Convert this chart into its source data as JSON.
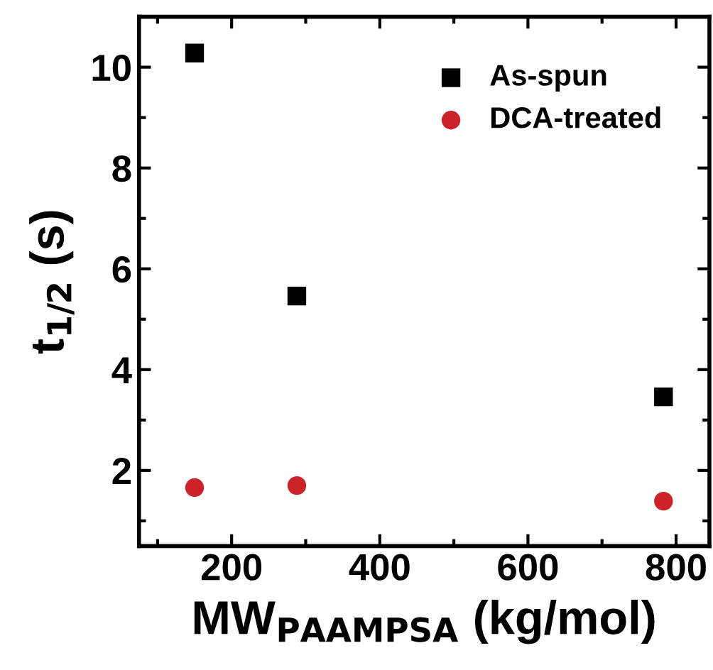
{
  "chart_data": {
    "type": "scatter",
    "xlabel": "MW$_{PAAMPSA}$ (kg/mol)",
    "ylabel": "t$_{1/2}$ (s)",
    "x": [
      150,
      288,
      783
    ],
    "series": [
      {
        "name": "As-spun",
        "color": "#000000",
        "marker": "square",
        "values": [
          10.28,
          5.46,
          3.46
        ]
      },
      {
        "name": "DCA-treated",
        "color": "#cc2229",
        "marker": "circle",
        "values": [
          1.66,
          1.7,
          1.39
        ]
      }
    ],
    "xlim": [
      75,
      845
    ],
    "xticks": [
      200,
      400,
      600,
      800
    ],
    "ylim": [
      0.5,
      11
    ],
    "yticks": [
      2,
      4,
      6,
      8,
      10
    ],
    "grid": false,
    "legend": "top right"
  }
}
